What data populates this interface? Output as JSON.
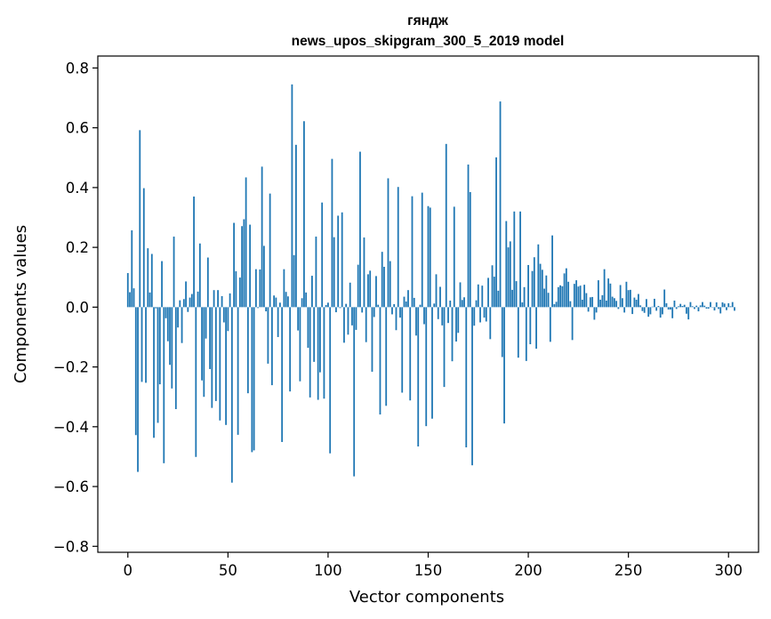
{
  "chart_data": {
    "type": "bar",
    "title": "гяндж",
    "subtitle": "news_upos_skipgram_300_5_2019 model",
    "xlabel": "Vector components",
    "ylabel": "Components values",
    "xlim": [
      -15,
      315
    ],
    "ylim": [
      -0.82,
      0.84
    ],
    "grid": false,
    "legend": "none",
    "bar_color": "#1f77b4",
    "xticks": [
      {
        "value": 0,
        "label": "0"
      },
      {
        "value": 50,
        "label": "50"
      },
      {
        "value": 100,
        "label": "100"
      },
      {
        "value": 150,
        "label": "150"
      },
      {
        "value": 200,
        "label": "200"
      },
      {
        "value": 250,
        "label": "250"
      },
      {
        "value": 300,
        "label": "300"
      }
    ],
    "yticks": [
      {
        "value": 0.8,
        "label": "0.8"
      },
      {
        "value": 0.6,
        "label": "0.6"
      },
      {
        "value": 0.4,
        "label": "0.4"
      },
      {
        "value": 0.2,
        "label": "0.2"
      },
      {
        "value": 0.0,
        "label": "0.0"
      },
      {
        "value": -0.2,
        "label": "−0.2"
      },
      {
        "value": -0.4,
        "label": "−0.4"
      },
      {
        "value": -0.6,
        "label": "−0.6"
      },
      {
        "value": -0.8,
        "label": "−0.8"
      }
    ],
    "values": [
      0.114,
      0.05,
      0.257,
      0.063,
      -0.428,
      -0.551,
      0.592,
      -0.25,
      0.398,
      -0.253,
      0.197,
      0.049,
      0.178,
      -0.437,
      -0.004,
      -0.387,
      -0.258,
      0.154,
      -0.522,
      -0.037,
      -0.114,
      -0.193,
      -0.272,
      0.236,
      -0.341,
      -0.068,
      0.023,
      -0.12,
      0.027,
      0.086,
      -0.016,
      0.032,
      0.044,
      0.37,
      -0.501,
      0.052,
      0.213,
      -0.245,
      -0.3,
      -0.105,
      0.166,
      -0.207,
      -0.337,
      0.057,
      -0.314,
      0.057,
      -0.379,
      0.037,
      -0.051,
      -0.394,
      -0.08,
      0.046,
      -0.587,
      0.282,
      0.12,
      -0.427,
      0.099,
      0.271,
      0.294,
      0.434,
      -0.288,
      0.276,
      -0.485,
      -0.479,
      0.127,
      -0.003,
      0.126,
      0.47,
      0.205,
      -0.014,
      -0.189,
      0.38,
      -0.261,
      0.039,
      0.032,
      -0.1,
      0.015,
      -0.451,
      0.127,
      0.051,
      0.036,
      -0.282,
      0.745,
      0.174,
      0.543,
      -0.078,
      -0.248,
      0.03,
      0.622,
      0.049,
      -0.136,
      -0.302,
      0.105,
      -0.183,
      0.236,
      -0.31,
      -0.218,
      0.35,
      -0.306,
      0.007,
      0.015,
      -0.489,
      0.496,
      0.234,
      -0.017,
      0.306,
      -0.003,
      0.317,
      -0.119,
      0.011,
      -0.092,
      0.082,
      -0.061,
      -0.566,
      -0.076,
      0.142,
      0.52,
      -0.018,
      0.233,
      -0.117,
      0.11,
      0.122,
      -0.216,
      -0.033,
      0.104,
      0.008,
      -0.359,
      0.185,
      0.135,
      -0.33,
      0.431,
      0.154,
      -0.024,
      0.01,
      -0.077,
      0.402,
      -0.035,
      -0.286,
      0.035,
      0.019,
      0.057,
      -0.312,
      0.371,
      0.031,
      -0.095,
      -0.466,
      0.008,
      0.383,
      -0.057,
      -0.398,
      0.338,
      0.333,
      -0.373,
      0.012,
      0.11,
      -0.04,
      0.068,
      -0.061,
      -0.267,
      0.546,
      -0.053,
      0.022,
      -0.181,
      0.336,
      -0.115,
      -0.086,
      0.083,
      0.024,
      0.033,
      -0.469,
      0.477,
      0.385,
      -0.529,
      -0.062,
      0.023,
      0.076,
      -0.051,
      0.072,
      -0.035,
      -0.048,
      0.098,
      -0.107,
      0.14,
      0.102,
      0.501,
      0.055,
      0.688,
      -0.167,
      -0.389,
      0.288,
      0.2,
      0.22,
      0.058,
      0.32,
      0.087,
      -0.169,
      0.32,
      0.016,
      0.067,
      -0.18,
      0.141,
      -0.124,
      0.121,
      0.167,
      -0.139,
      0.21,
      0.145,
      0.125,
      0.062,
      0.106,
      0.048,
      -0.116,
      0.24,
      0.01,
      0.018,
      0.067,
      0.073,
      0.07,
      0.113,
      0.13,
      0.085,
      0.02,
      -0.11,
      0.078,
      0.09,
      0.069,
      0.072,
      0.025,
      0.075,
      0.047,
      -0.015,
      0.033,
      0.034,
      -0.042,
      -0.018,
      0.09,
      0.025,
      0.04,
      0.127,
      0.022,
      0.096,
      0.079,
      0.035,
      0.03,
      0.021,
      -0.006,
      0.074,
      0.03,
      -0.018,
      0.085,
      0.057,
      0.058,
      -0.023,
      0.032,
      0.025,
      0.044,
      0.006,
      -0.013,
      -0.019,
      0.027,
      -0.032,
      -0.024,
      0.002,
      0.028,
      -0.012,
      0.004,
      -0.035,
      -0.024,
      0.059,
      0.013,
      -0.008,
      -0.008,
      -0.037,
      0.022,
      -0.006,
      0.003,
      0.011,
      0.004,
      0.008,
      -0.022,
      -0.041,
      0.017,
      0.003,
      -0.006,
      0.005,
      -0.014,
      0.006,
      0.017,
      0.005,
      -0.005,
      -0.005,
      0.017,
      -0.001,
      -0.011,
      0.016,
      -0.006,
      -0.021,
      0.016,
      0.012,
      -0.01,
      0.013,
      0.003,
      0.017,
      -0.012
    ]
  }
}
